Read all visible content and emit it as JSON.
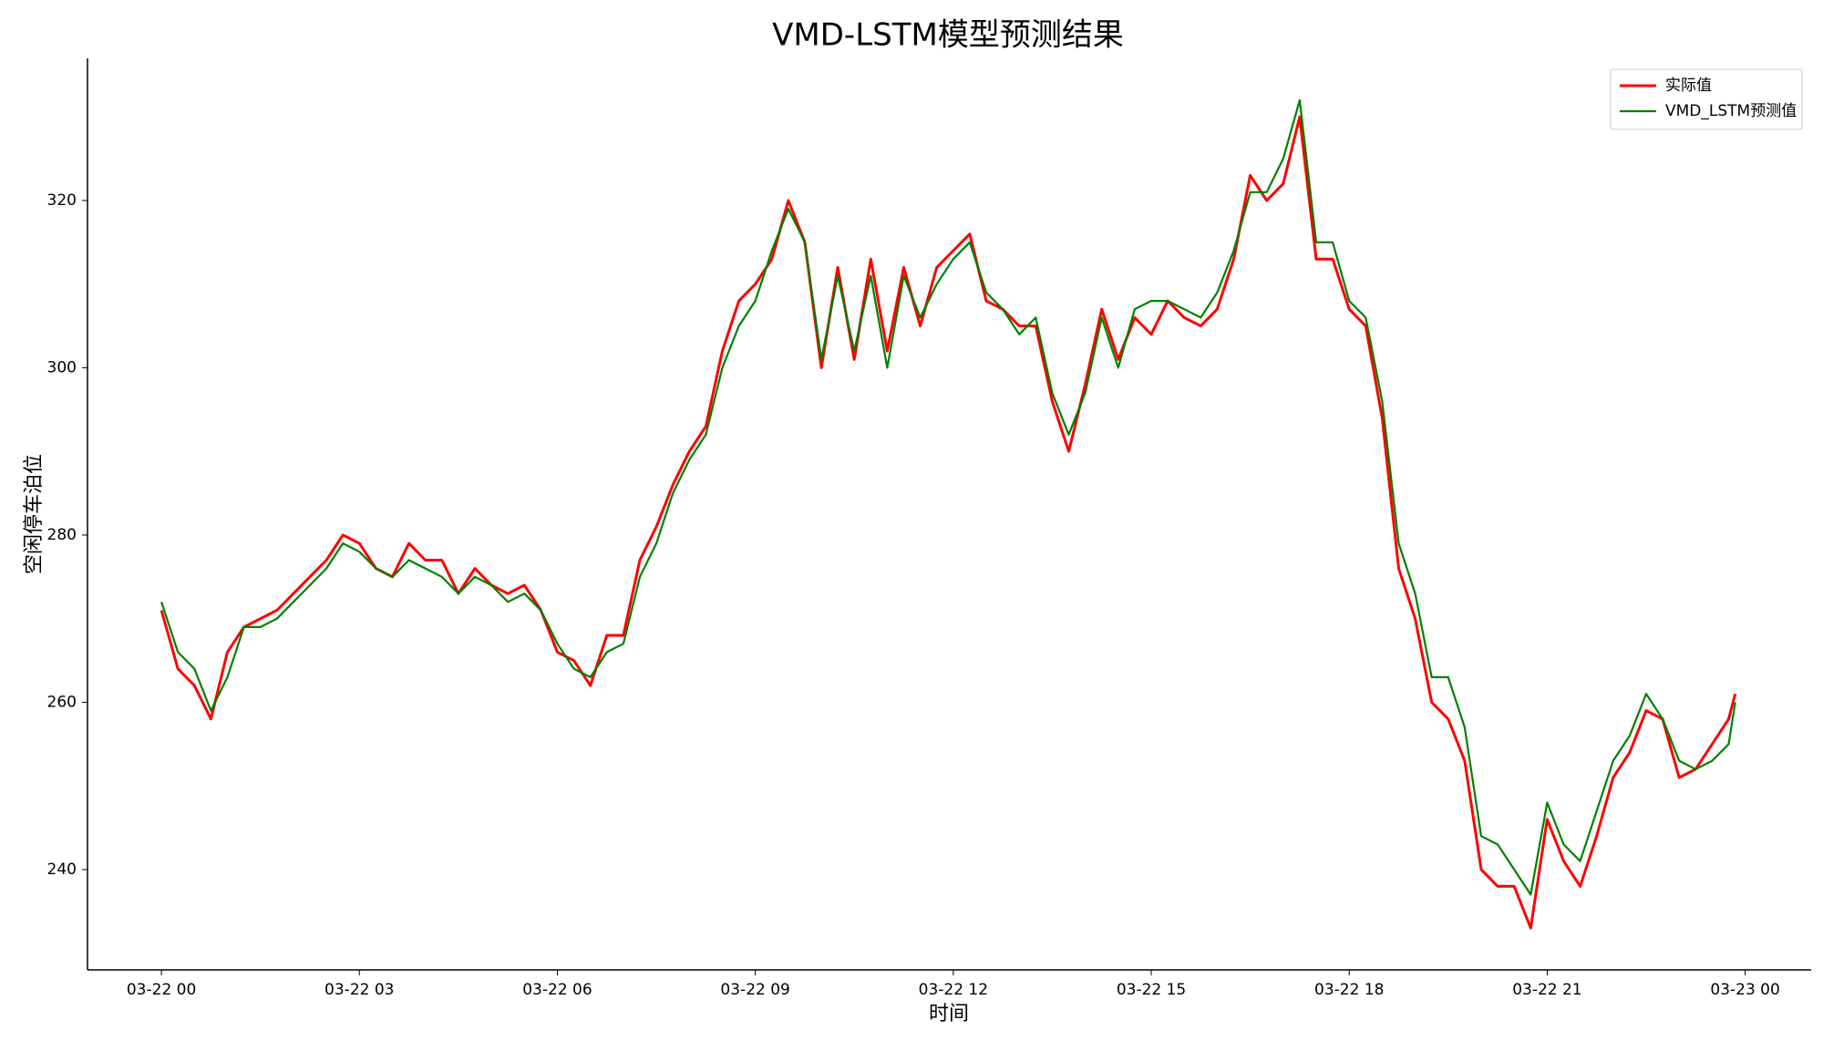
{
  "chart_data": {
    "type": "line",
    "title": "VMD-LSTM模型预测结果",
    "x_label": "时间",
    "y_label": "空闲停车泊位",
    "x": [
      0,
      0.25,
      0.5,
      0.75,
      1,
      1.25,
      1.5,
      1.75,
      2,
      2.25,
      2.5,
      2.75,
      3,
      3.25,
      3.5,
      3.75,
      4,
      4.25,
      4.5,
      4.75,
      5,
      5.25,
      5.5,
      5.75,
      6,
      6.25,
      6.5,
      6.75,
      7,
      7.25,
      7.5,
      7.75,
      8,
      8.25,
      8.5,
      8.75,
      9,
      9.25,
      9.5,
      9.75,
      10,
      10.25,
      10.5,
      10.75,
      11,
      11.25,
      11.5,
      11.75,
      12,
      12.25,
      12.5,
      12.75,
      13,
      13.25,
      13.5,
      13.75,
      14,
      14.25,
      14.5,
      14.75,
      15,
      15.25,
      15.5,
      15.75,
      16,
      16.25,
      16.5,
      16.75,
      17,
      17.25,
      17.5,
      17.75,
      18,
      18.25,
      18.5,
      18.75,
      19,
      19.25,
      19.5,
      19.75,
      20,
      20.25,
      20.5,
      20.75,
      21,
      21.25,
      21.5,
      21.75,
      22,
      22.25,
      22.5,
      22.75,
      23,
      23.25,
      23.5,
      23.75,
      23.85
    ],
    "series": [
      {
        "name": "实际值",
        "color": "#ff0000",
        "width": 3,
        "values": [
          271,
          264,
          262,
          258,
          266,
          269,
          270,
          271,
          273,
          275,
          277,
          280,
          279,
          276,
          275,
          279,
          277,
          277,
          273,
          276,
          274,
          273,
          274,
          271,
          266,
          265,
          262,
          268,
          268,
          277,
          281,
          286,
          290,
          293,
          302,
          308,
          310,
          313,
          320,
          315,
          300,
          312,
          301,
          313,
          302,
          312,
          305,
          312,
          314,
          316,
          308,
          307,
          305,
          305,
          296,
          290,
          298,
          307,
          301,
          306,
          304,
          308,
          306,
          305,
          307,
          313,
          323,
          320,
          322,
          330,
          313,
          313,
          307,
          305,
          294,
          276,
          270,
          260,
          258,
          253,
          240,
          238,
          238,
          233,
          246,
          241,
          238,
          244,
          251,
          254,
          259,
          258,
          251,
          252,
          255,
          258,
          261
        ]
      },
      {
        "name": "VMD_LSTM预测值",
        "color": "#008000",
        "width": 2.2,
        "values": [
          272,
          266,
          264,
          259,
          263,
          269,
          269,
          270,
          272,
          274,
          276,
          279,
          278,
          276,
          275,
          277,
          276,
          275,
          273,
          275,
          274,
          272,
          273,
          271,
          267,
          264,
          263,
          266,
          267,
          275,
          279,
          285,
          289,
          292,
          300,
          305,
          308,
          314,
          319,
          315,
          301,
          311,
          302,
          311,
          300,
          311,
          306,
          310,
          313,
          315,
          309,
          307,
          304,
          306,
          297,
          292,
          297,
          306,
          300,
          307,
          308,
          308,
          307,
          306,
          309,
          314,
          321,
          321,
          325,
          332,
          315,
          315,
          308,
          306,
          296,
          279,
          273,
          263,
          263,
          257,
          244,
          243,
          240,
          237,
          248,
          243,
          241,
          247,
          253,
          256,
          261,
          258,
          253,
          252,
          253,
          255,
          260
        ]
      }
    ],
    "xlim": [
      -1.12,
      25.0
    ],
    "xticks": [
      {
        "value": 0,
        "label": "03-22 00"
      },
      {
        "value": 3,
        "label": "03-22 03"
      },
      {
        "value": 6,
        "label": "03-22 06"
      },
      {
        "value": 9,
        "label": "03-22 09"
      },
      {
        "value": 12,
        "label": "03-22 12"
      },
      {
        "value": 15,
        "label": "03-22 15"
      },
      {
        "value": 18,
        "label": "03-22 18"
      },
      {
        "value": 21,
        "label": "03-22 21"
      },
      {
        "value": 24,
        "label": "03-23 00"
      }
    ],
    "ylim": [
      228,
      337
    ],
    "yticks": [
      240,
      260,
      280,
      300,
      320
    ],
    "legend": "upper right",
    "grid": false
  }
}
